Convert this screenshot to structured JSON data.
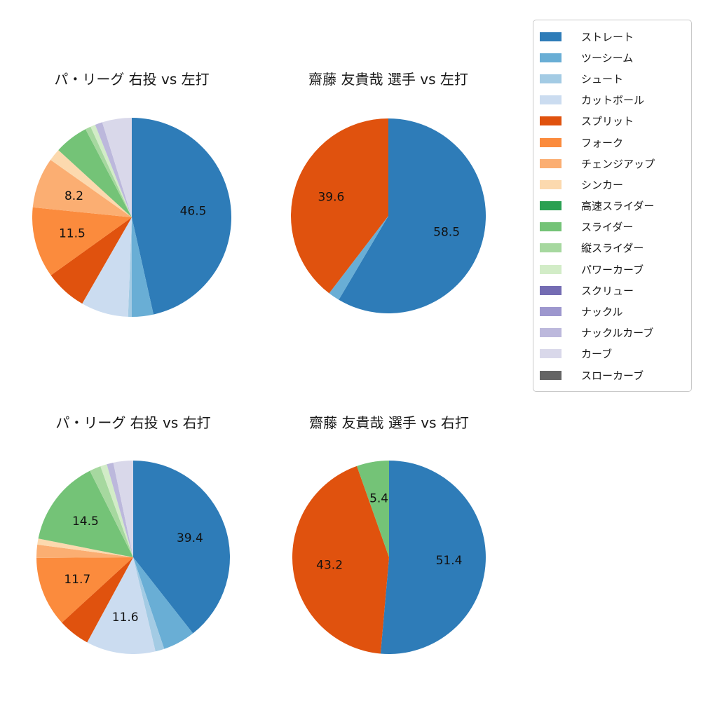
{
  "page": {
    "background": "#ffffff"
  },
  "legend": {
    "position": "upper-right",
    "items": [
      {
        "key": "straight",
        "label": "ストレート",
        "color": "#2e7cb8"
      },
      {
        "key": "two-seam",
        "label": "ツーシーム",
        "color": "#69aed5"
      },
      {
        "key": "shuuto",
        "label": "シュート",
        "color": "#a3cbe4"
      },
      {
        "key": "cut-ball",
        "label": "カットボール",
        "color": "#cbdcf0"
      },
      {
        "key": "split",
        "label": "スプリット",
        "color": "#e0520e"
      },
      {
        "key": "fork",
        "label": "フォーク",
        "color": "#fb8b3d"
      },
      {
        "key": "changeup",
        "label": "チェンジアップ",
        "color": "#fbae72"
      },
      {
        "key": "sinker",
        "label": "シンカー",
        "color": "#fcd9ae"
      },
      {
        "key": "fast-slider",
        "label": "高速スライダー",
        "color": "#2aa052"
      },
      {
        "key": "slider",
        "label": "スライダー",
        "color": "#74c377"
      },
      {
        "key": "vertical-slider",
        "label": "縦スライダー",
        "color": "#a6d89f"
      },
      {
        "key": "power-curve",
        "label": "パワーカーブ",
        "color": "#d2ecc7"
      },
      {
        "key": "screw",
        "label": "スクリュー",
        "color": "#746cb3"
      },
      {
        "key": "knuckle",
        "label": "ナックル",
        "color": "#9d97ce"
      },
      {
        "key": "knuckle-curve",
        "label": "ナックルカーブ",
        "color": "#bcb8dc"
      },
      {
        "key": "curve",
        "label": "カーブ",
        "color": "#d9d8ea"
      },
      {
        "key": "slow-curve",
        "label": "スローカーブ",
        "color": "#646464"
      }
    ]
  },
  "chart_data": [
    {
      "type": "pie",
      "title": "パ・リーグ 右投 vs 左打",
      "start_angle": "top",
      "direction": "clockwise",
      "values_are_percent": true,
      "slices": [
        {
          "pitch": "ストレート",
          "key": "straight",
          "value": 46.5,
          "label_shown": true
        },
        {
          "pitch": "ツーシーム",
          "key": "two-seam",
          "value": 3.5,
          "label_shown": false
        },
        {
          "pitch": "シュート",
          "key": "shuuto",
          "value": 0.6,
          "label_shown": false
        },
        {
          "pitch": "カットボール",
          "key": "cut-ball",
          "value": 7.7,
          "label_shown": false
        },
        {
          "pitch": "スプリット",
          "key": "split",
          "value": 6.8,
          "label_shown": false
        },
        {
          "pitch": "フォーク",
          "key": "fork",
          "value": 11.5,
          "label_shown": true
        },
        {
          "pitch": "チェンジアップ",
          "key": "changeup",
          "value": 8.2,
          "label_shown": true
        },
        {
          "pitch": "シンカー",
          "key": "sinker",
          "value": 2.0,
          "label_shown": false
        },
        {
          "pitch": "スライダー",
          "key": "slider",
          "value": 5.5,
          "label_shown": false
        },
        {
          "pitch": "縦スライダー",
          "key": "vertical-slider",
          "value": 0.9,
          "label_shown": false
        },
        {
          "pitch": "パワーカーブ",
          "key": "power-curve",
          "value": 0.8,
          "label_shown": false
        },
        {
          "pitch": "ナックルカーブ",
          "key": "knuckle-curve",
          "value": 1.2,
          "label_shown": false
        },
        {
          "pitch": "カーブ",
          "key": "curve",
          "value": 4.8,
          "label_shown": false
        }
      ]
    },
    {
      "type": "pie",
      "title": "齋藤 友貴哉 選手 vs 左打",
      "start_angle": "top",
      "direction": "clockwise",
      "values_are_percent": true,
      "slices": [
        {
          "pitch": "ストレート",
          "key": "straight",
          "value": 58.5,
          "label_shown": true
        },
        {
          "pitch": "ツーシーム",
          "key": "two-seam",
          "value": 1.9,
          "label_shown": false
        },
        {
          "pitch": "スプリット",
          "key": "split",
          "value": 39.6,
          "label_shown": true
        }
      ]
    },
    {
      "type": "pie",
      "title": "パ・リーグ 右投 vs 右打",
      "start_angle": "top",
      "direction": "clockwise",
      "values_are_percent": true,
      "slices": [
        {
          "pitch": "ストレート",
          "key": "straight",
          "value": 39.4,
          "label_shown": true
        },
        {
          "pitch": "ツーシーム",
          "key": "two-seam",
          "value": 5.4,
          "label_shown": false
        },
        {
          "pitch": "シュート",
          "key": "shuuto",
          "value": 1.5,
          "label_shown": false
        },
        {
          "pitch": "カットボール",
          "key": "cut-ball",
          "value": 11.6,
          "label_shown": true
        },
        {
          "pitch": "スプリット",
          "key": "split",
          "value": 5.3,
          "label_shown": false
        },
        {
          "pitch": "フォーク",
          "key": "fork",
          "value": 11.7,
          "label_shown": true
        },
        {
          "pitch": "チェンジアップ",
          "key": "changeup",
          "value": 2.2,
          "label_shown": false
        },
        {
          "pitch": "シンカー",
          "key": "sinker",
          "value": 1.0,
          "label_shown": false
        },
        {
          "pitch": "スライダー",
          "key": "slider",
          "value": 14.5,
          "label_shown": true
        },
        {
          "pitch": "縦スライダー",
          "key": "vertical-slider",
          "value": 1.9,
          "label_shown": false
        },
        {
          "pitch": "パワーカーブ",
          "key": "power-curve",
          "value": 1.1,
          "label_shown": false
        },
        {
          "pitch": "ナックルカーブ",
          "key": "knuckle-curve",
          "value": 1.1,
          "label_shown": false
        },
        {
          "pitch": "カーブ",
          "key": "curve",
          "value": 3.3,
          "label_shown": false
        }
      ]
    },
    {
      "type": "pie",
      "title": "齋藤 友貴哉 選手 vs 右打",
      "start_angle": "top",
      "direction": "clockwise",
      "values_are_percent": true,
      "slices": [
        {
          "pitch": "ストレート",
          "key": "straight",
          "value": 51.4,
          "label_shown": true
        },
        {
          "pitch": "スプリット",
          "key": "split",
          "value": 43.2,
          "label_shown": true
        },
        {
          "pitch": "スライダー",
          "key": "slider",
          "value": 5.4,
          "label_shown": true
        }
      ]
    }
  ]
}
